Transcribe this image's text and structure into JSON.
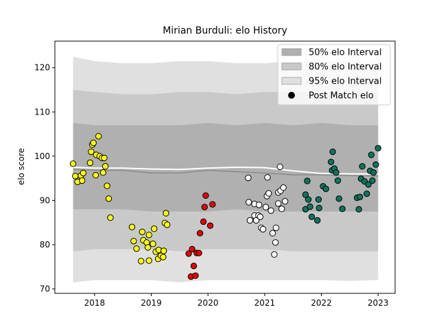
{
  "chart_data": {
    "type": "scatter",
    "title": "Mirian Burduli: elo History",
    "xlabel": "",
    "ylabel": "elo score",
    "xlim": [
      2017.3,
      2023.3
    ],
    "ylim": [
      69,
      126
    ],
    "xticks": [
      2018,
      2019,
      2020,
      2021,
      2022,
      2023
    ],
    "xtick_labels": [
      "2018",
      "2019",
      "2020",
      "2021",
      "2022",
      "2023"
    ],
    "yticks": [
      70,
      80,
      90,
      100,
      110,
      120
    ],
    "ytick_labels": [
      "70",
      "80",
      "90",
      "100",
      "110",
      "120"
    ],
    "grid": false,
    "legend_position": "top-right",
    "legend": [
      {
        "label": "50% elo Interval",
        "kind": "band",
        "color": "#b0b0b0"
      },
      {
        "label": "80% elo Interval",
        "kind": "band",
        "color": "#c9c9c9"
      },
      {
        "label": "95% elo Interval",
        "kind": "band",
        "color": "#e0e0e0"
      },
      {
        "label": "Post Match elo",
        "kind": "marker",
        "color": "#000000"
      }
    ],
    "bands": {
      "x": [
        2017.62,
        2018.0,
        2018.5,
        2019.0,
        2019.5,
        2020.0,
        2020.5,
        2021.0,
        2021.5,
        2022.0,
        2022.5,
        2023.0
      ],
      "p95": {
        "upper": [
          122.5,
          121.5,
          121.0,
          121.0,
          121.5,
          121.5,
          121.0,
          121.0,
          121.5,
          121.5,
          121.5,
          121.0
        ],
        "lower": [
          71.5,
          72.0,
          72.0,
          72.0,
          71.5,
          72.0,
          72.0,
          72.0,
          72.0,
          72.0,
          71.8,
          72.0
        ]
      },
      "p80": {
        "upper": [
          115.0,
          114.5,
          114.0,
          114.0,
          114.5,
          114.5,
          114.0,
          114.5,
          114.5,
          114.5,
          114.0,
          114.0
        ],
        "lower": [
          78.5,
          79.0,
          79.0,
          79.0,
          78.5,
          79.0,
          79.0,
          79.0,
          78.5,
          78.5,
          78.5,
          78.5
        ]
      },
      "p50": {
        "upper": [
          107.5,
          107.0,
          107.0,
          107.0,
          107.0,
          107.5,
          107.0,
          107.5,
          107.0,
          107.5,
          107.0,
          107.0
        ],
        "lower": [
          88.0,
          88.0,
          88.0,
          87.5,
          87.5,
          87.5,
          88.0,
          87.5,
          87.5,
          87.5,
          87.5,
          87.5
        ]
      },
      "median": [
        97.0,
        96.8,
        96.8,
        96.2,
        96.2,
        96.8,
        96.5,
        96.2,
        95.8,
        95.8,
        95.6,
        95.5
      ],
      "mean": [
        97.5,
        97.3,
        97.3,
        97.1,
        97.0,
        97.3,
        97.5,
        97.4,
        96.7,
        96.1,
        96.0,
        96.0
      ]
    },
    "series": [
      {
        "color": "#ffff14",
        "points": [
          [
            2017.62,
            98.3
          ],
          [
            2017.66,
            95.5
          ],
          [
            2017.7,
            94.2
          ],
          [
            2017.76,
            95.6
          ],
          [
            2017.78,
            94.5
          ],
          [
            2017.8,
            96.2
          ],
          [
            2017.92,
            98.5
          ],
          [
            2017.94,
            101.0
          ],
          [
            2017.96,
            102.6
          ],
          [
            2017.98,
            103.0
          ],
          [
            2018.03,
            100.3
          ],
          [
            2018.02,
            95.7
          ],
          [
            2018.07,
            104.5
          ],
          [
            2018.09,
            100.0
          ],
          [
            2018.13,
            99.6
          ],
          [
            2018.15,
            96.3
          ],
          [
            2018.17,
            99.6
          ],
          [
            2018.19,
            97.7
          ],
          [
            2018.22,
            93.3
          ],
          [
            2018.25,
            90.4
          ],
          [
            2018.28,
            86.1
          ],
          [
            2018.66,
            84.0
          ],
          [
            2018.69,
            80.8
          ],
          [
            2018.74,
            79.1
          ],
          [
            2018.82,
            76.3
          ],
          [
            2018.84,
            82.9
          ],
          [
            2018.86,
            81.0
          ],
          [
            2018.92,
            80.5
          ],
          [
            2018.94,
            79.4
          ],
          [
            2018.96,
            82.2
          ],
          [
            2018.96,
            76.4
          ],
          [
            2019.03,
            80.2
          ],
          [
            2019.05,
            83.6
          ],
          [
            2019.08,
            78.4
          ],
          [
            2019.12,
            76.8
          ],
          [
            2019.13,
            78.8
          ],
          [
            2019.17,
            77.5
          ],
          [
            2019.21,
            77.2
          ],
          [
            2019.22,
            78.6
          ],
          [
            2019.24,
            84.9
          ],
          [
            2019.26,
            87.1
          ],
          [
            2019.28,
            84.5
          ]
        ]
      },
      {
        "color": "#e50000",
        "points": [
          [
            2019.66,
            78.0
          ],
          [
            2019.7,
            72.8
          ],
          [
            2019.72,
            79.0
          ],
          [
            2019.75,
            75.2
          ],
          [
            2019.78,
            73.0
          ],
          [
            2019.8,
            78.1
          ],
          [
            2019.84,
            78.1
          ],
          [
            2019.86,
            82.6
          ],
          [
            2019.92,
            85.2
          ],
          [
            2019.94,
            88.5
          ],
          [
            2019.96,
            91.1
          ],
          [
            2020.04,
            84.3
          ],
          [
            2020.08,
            89.1
          ]
        ]
      },
      {
        "color": "#ffffff",
        "points": [
          [
            2020.71,
            95.1
          ],
          [
            2020.72,
            89.6
          ],
          [
            2020.74,
            85.5
          ],
          [
            2020.82,
            89.2
          ],
          [
            2020.82,
            86.6
          ],
          [
            2020.85,
            85.5
          ],
          [
            2020.89,
            86.6
          ],
          [
            2020.9,
            89.0
          ],
          [
            2020.92,
            86.3
          ],
          [
            2020.94,
            83.8
          ],
          [
            2020.97,
            83.5
          ],
          [
            2021.02,
            88.5
          ],
          [
            2021.04,
            91.0
          ],
          [
            2021.05,
            95.2
          ],
          [
            2021.07,
            91.6
          ],
          [
            2021.11,
            87.7
          ],
          [
            2021.14,
            82.6
          ],
          [
            2021.17,
            77.8
          ],
          [
            2021.19,
            80.5
          ],
          [
            2021.2,
            83.8
          ],
          [
            2021.24,
            89.3
          ],
          [
            2021.24,
            91.8
          ],
          [
            2021.27,
            97.6
          ],
          [
            2021.28,
            92.2
          ],
          [
            2021.3,
            88.1
          ],
          [
            2021.33,
            92.9
          ],
          [
            2021.36,
            89.8
          ]
        ]
      },
      {
        "color": "#10735d",
        "points": [
          [
            2021.72,
            88.0
          ],
          [
            2021.72,
            91.3
          ],
          [
            2021.75,
            94.4
          ],
          [
            2021.77,
            90.2
          ],
          [
            2021.8,
            88.6
          ],
          [
            2021.83,
            86.3
          ],
          [
            2021.93,
            85.5
          ],
          [
            2021.95,
            90.2
          ],
          [
            2021.96,
            88.3
          ],
          [
            2022.03,
            93.2
          ],
          [
            2022.08,
            92.6
          ],
          [
            2022.17,
            98.7
          ],
          [
            2022.19,
            96.8
          ],
          [
            2022.2,
            101.0
          ],
          [
            2022.23,
            97.2
          ],
          [
            2022.26,
            96.3
          ],
          [
            2022.29,
            94.5
          ],
          [
            2022.31,
            90.4
          ],
          [
            2022.37,
            88.1
          ],
          [
            2022.63,
            90.6
          ],
          [
            2022.66,
            88.0
          ],
          [
            2022.68,
            90.8
          ],
          [
            2022.7,
            94.9
          ],
          [
            2022.72,
            97.7
          ],
          [
            2022.76,
            94.3
          ],
          [
            2022.8,
            91.5
          ],
          [
            2022.83,
            93.6
          ],
          [
            2022.86,
            96.7
          ],
          [
            2022.88,
            100.3
          ],
          [
            2022.9,
            94.5
          ],
          [
            2022.92,
            96.3
          ],
          [
            2022.96,
            98.1
          ],
          [
            2023.0,
            101.8
          ]
        ]
      }
    ]
  }
}
